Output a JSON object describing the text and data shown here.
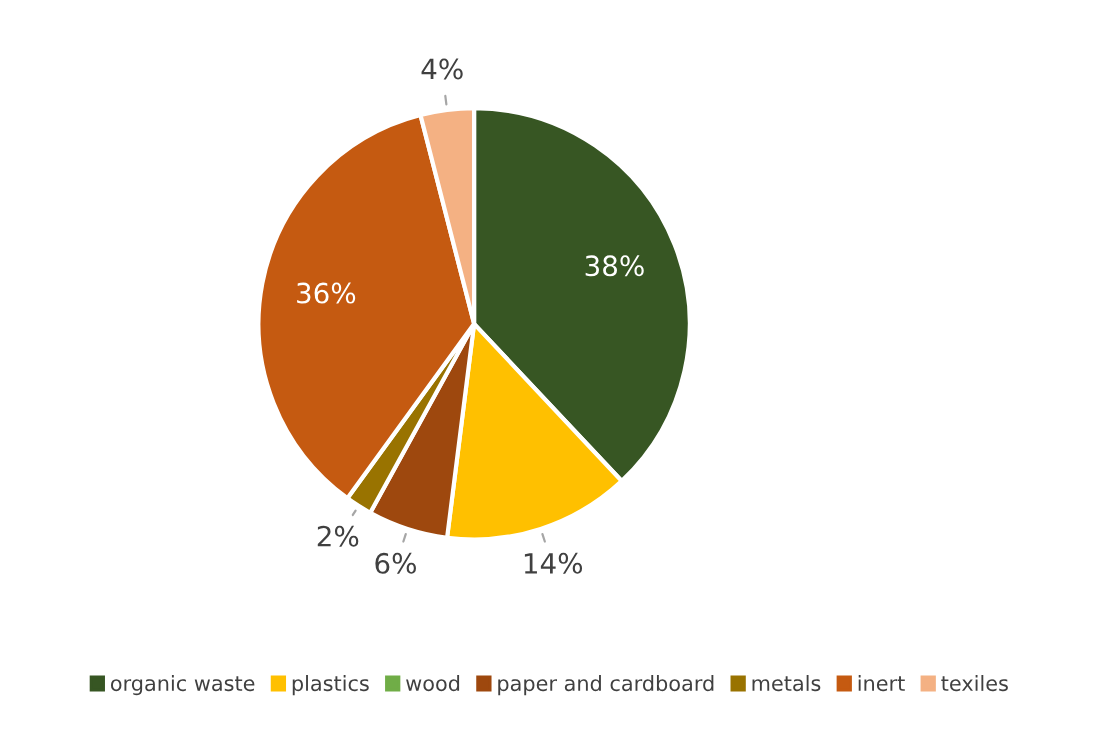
{
  "chart_data": {
    "type": "pie",
    "categories": [
      "organic waste",
      "plastics",
      "wood",
      "paper and cardboard",
      "metals",
      "inert",
      "texiles"
    ],
    "values": [
      38,
      14,
      0,
      6,
      2,
      36,
      4
    ],
    "value_labels": [
      "38%",
      "14%",
      null,
      "6%",
      "2%",
      "36%",
      "4%"
    ],
    "colors": [
      "#375623",
      "#ffc000",
      "#70ad47",
      "#9e480e",
      "#997300",
      "#c55a11",
      "#f4b183"
    ],
    "legend": "bottom"
  }
}
